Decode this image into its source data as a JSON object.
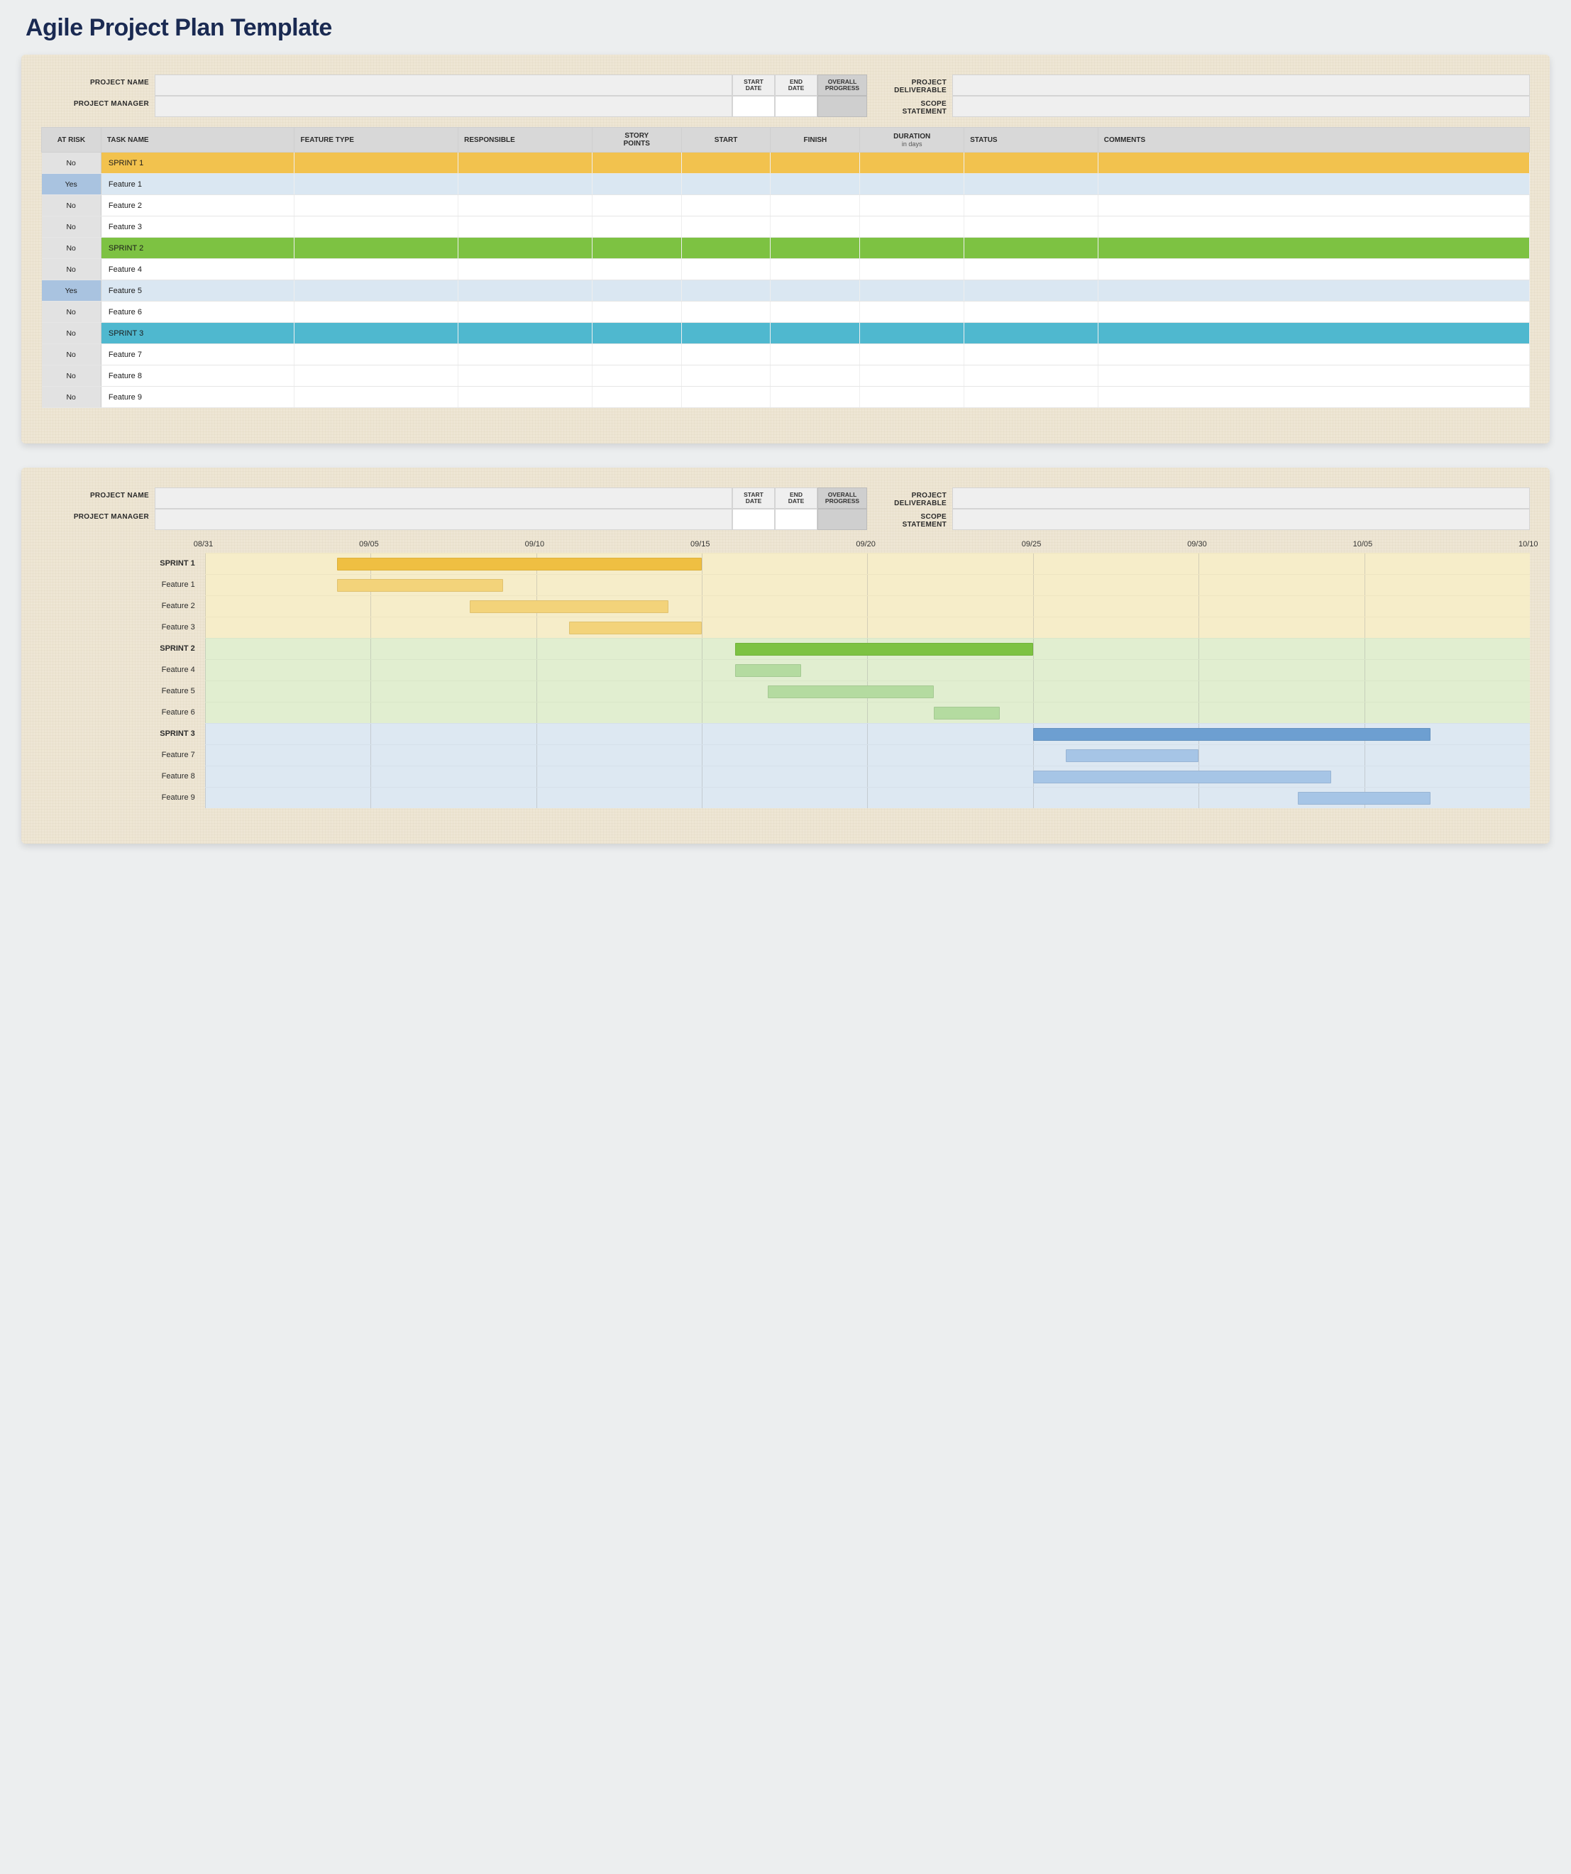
{
  "title": "Agile Project Plan Template",
  "meta": {
    "project_name_label": "PROJECT NAME",
    "project_manager_label": "PROJECT MANAGER",
    "start_date_label": "START\nDATE",
    "end_date_label": "END\nDATE",
    "overall_progress_label": "OVERALL\nPROGRESS",
    "project_deliverable_label": "PROJECT\nDELIVERABLE",
    "scope_statement_label": "SCOPE\nSTATEMENT",
    "project_name": "",
    "project_manager": "",
    "start_date": "",
    "end_date": "",
    "overall_progress": "",
    "project_deliverable": "",
    "scope_statement": ""
  },
  "table": {
    "columns": {
      "at_risk": "AT RISK",
      "task_name": "TASK NAME",
      "feature_type": "FEATURE TYPE",
      "responsible": "RESPONSIBLE",
      "story_points": "STORY\nPOINTS",
      "start": "START",
      "finish": "FINISH",
      "duration": "DURATION",
      "duration_sub": "in days",
      "status": "STATUS",
      "comments": "COMMENTS"
    },
    "col_widths_pct": [
      4,
      13,
      11,
      9,
      6,
      6,
      6,
      7,
      9,
      29
    ],
    "rows": [
      {
        "at_risk": "No",
        "task": "SPRINT 1",
        "style": "sprint-yellow"
      },
      {
        "at_risk": "Yes",
        "task": "Feature 1",
        "style": "risk"
      },
      {
        "at_risk": "No",
        "task": "Feature 2",
        "style": "plain"
      },
      {
        "at_risk": "No",
        "task": "Feature 3",
        "style": "plain"
      },
      {
        "at_risk": "No",
        "task": "SPRINT 2",
        "style": "sprint-green"
      },
      {
        "at_risk": "No",
        "task": "Feature 4",
        "style": "plain"
      },
      {
        "at_risk": "Yes",
        "task": "Feature 5",
        "style": "risk"
      },
      {
        "at_risk": "No",
        "task": "Feature 6",
        "style": "plain"
      },
      {
        "at_risk": "No",
        "task": "SPRINT 3",
        "style": "sprint-blue"
      },
      {
        "at_risk": "No",
        "task": "Feature 7",
        "style": "plain"
      },
      {
        "at_risk": "No",
        "task": "Feature 8",
        "style": "plain"
      },
      {
        "at_risk": "No",
        "task": "Feature 9",
        "style": "plain"
      }
    ]
  },
  "gantt": {
    "label_col_pct": 11,
    "domain": {
      "min": 0,
      "max": 40
    },
    "ticks": [
      {
        "label": "08/31",
        "at": 0
      },
      {
        "label": "09/05",
        "at": 5
      },
      {
        "label": "09/10",
        "at": 10
      },
      {
        "label": "09/15",
        "at": 15
      },
      {
        "label": "09/20",
        "at": 20
      },
      {
        "label": "09/25",
        "at": 25
      },
      {
        "label": "09/30",
        "at": 30
      },
      {
        "label": "10/05",
        "at": 35
      },
      {
        "label": "10/10",
        "at": 40
      }
    ],
    "section_bg": {
      "yellow": "#f6edc9",
      "green": "#e1eed0",
      "blue": "#dde8f2"
    },
    "bar_colors": {
      "yellow_dark": "#efbf42",
      "yellow_light": "#f3d37a",
      "green_dark": "#7dc242",
      "green_light": "#b4dba0",
      "blue_dark": "#6d9fd1",
      "blue_light": "#a6c5e6"
    },
    "rows": [
      {
        "label": "SPRINT 1",
        "bold": true,
        "section": "yellow",
        "bar": {
          "start": 4,
          "end": 15,
          "color": "yellow_dark"
        }
      },
      {
        "label": "Feature 1",
        "bold": false,
        "section": "yellow",
        "bar": {
          "start": 4,
          "end": 9,
          "color": "yellow_light"
        }
      },
      {
        "label": "Feature 2",
        "bold": false,
        "section": "yellow",
        "bar": {
          "start": 8,
          "end": 14,
          "color": "yellow_light"
        }
      },
      {
        "label": "Feature 3",
        "bold": false,
        "section": "yellow",
        "bar": {
          "start": 11,
          "end": 15,
          "color": "yellow_light"
        }
      },
      {
        "label": "SPRINT 2",
        "bold": true,
        "section": "green",
        "bar": {
          "start": 16,
          "end": 25,
          "color": "green_dark"
        }
      },
      {
        "label": "Feature 4",
        "bold": false,
        "section": "green",
        "bar": {
          "start": 16,
          "end": 18,
          "color": "green_light"
        }
      },
      {
        "label": "Feature 5",
        "bold": false,
        "section": "green",
        "bar": {
          "start": 17,
          "end": 22,
          "color": "green_light"
        }
      },
      {
        "label": "Feature 6",
        "bold": false,
        "section": "green",
        "bar": {
          "start": 22,
          "end": 24,
          "color": "green_light"
        }
      },
      {
        "label": "SPRINT 3",
        "bold": true,
        "section": "blue",
        "bar": {
          "start": 25,
          "end": 37,
          "color": "blue_dark"
        }
      },
      {
        "label": "Feature 7",
        "bold": false,
        "section": "blue",
        "bar": {
          "start": 26,
          "end": 30,
          "color": "blue_light"
        }
      },
      {
        "label": "Feature 8",
        "bold": false,
        "section": "blue",
        "bar": {
          "start": 25,
          "end": 34,
          "color": "blue_light"
        }
      },
      {
        "label": "Feature 9",
        "bold": false,
        "section": "blue",
        "bar": {
          "start": 33,
          "end": 37,
          "color": "blue_light"
        }
      }
    ]
  }
}
